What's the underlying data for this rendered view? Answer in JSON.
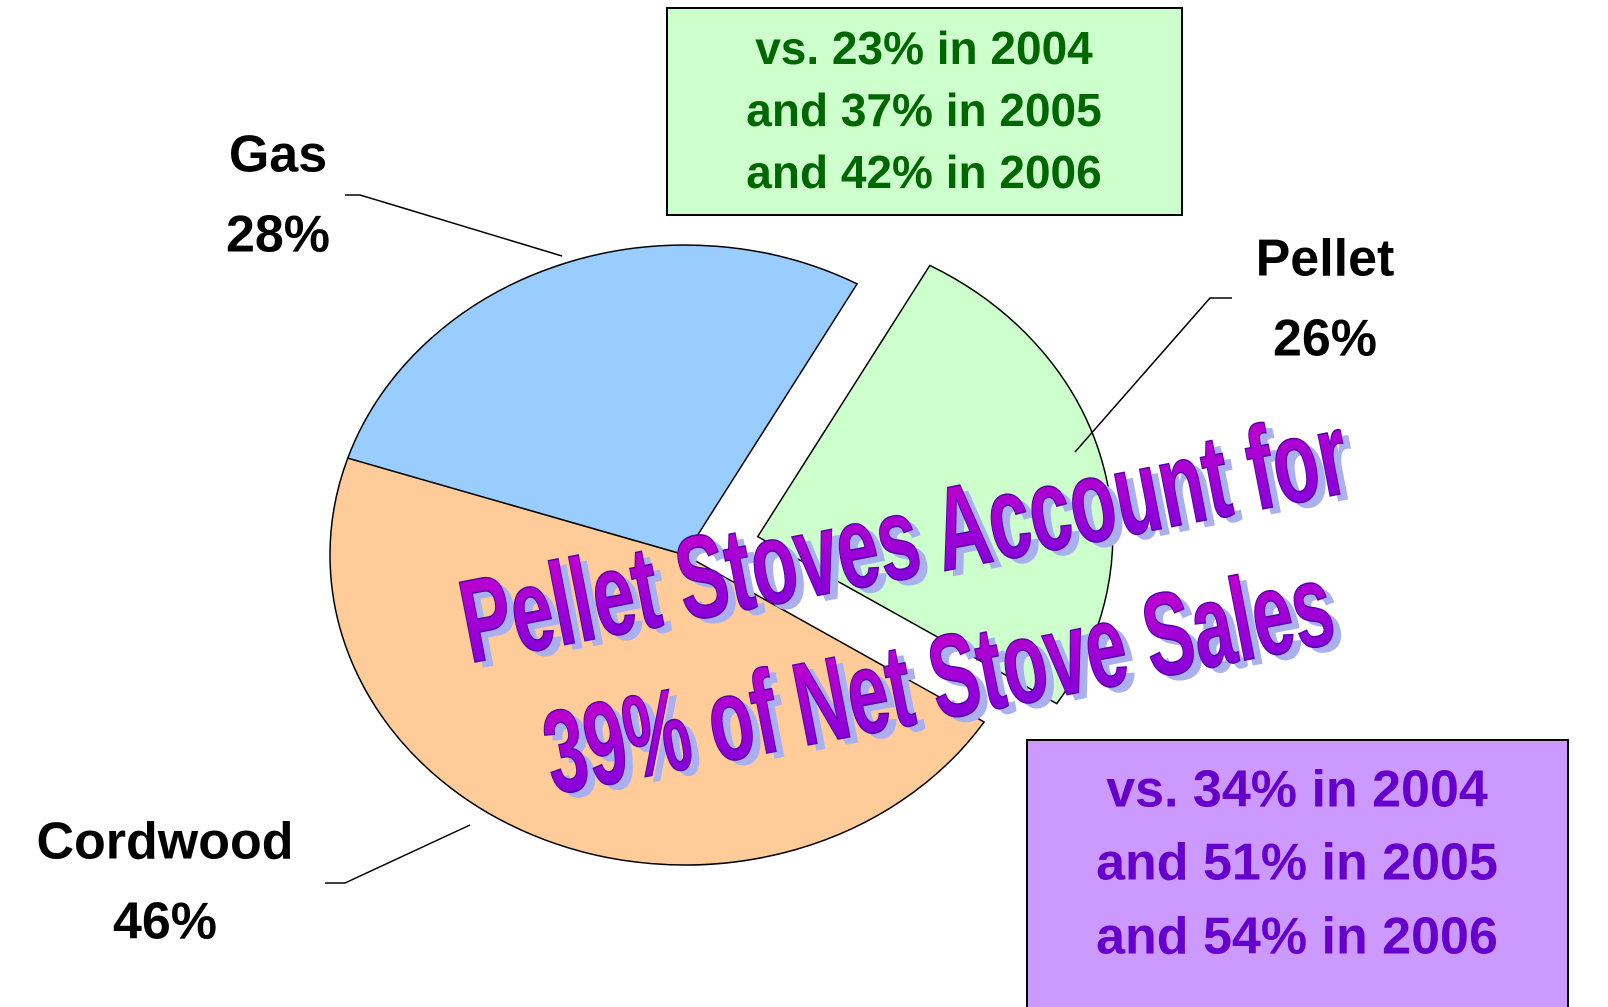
{
  "chart_data": {
    "type": "pie",
    "title": [
      "Pellet Stoves Account for",
      "39% of Net Stove Sales"
    ],
    "categories": [
      "Gas",
      "Pellet",
      "Cordwood"
    ],
    "values": [
      28,
      26,
      46
    ],
    "value_labels": [
      "28%",
      "26%",
      "46%"
    ],
    "colors": [
      "#99ccff",
      "#ccffcc",
      "#ffcc99"
    ],
    "exploded": "Pellet",
    "annotations": [
      {
        "lines": [
          "vs. 23% in 2004",
          "and 37% in 2005",
          "and 42% in 2006"
        ],
        "color": "#006600",
        "background": "#ccffcc"
      },
      {
        "lines": [
          "vs. 34% in 2004",
          "and 51% in 2005",
          "and 54% in 2006"
        ],
        "color": "#6600cc",
        "background": "#cc99ff"
      }
    ]
  }
}
